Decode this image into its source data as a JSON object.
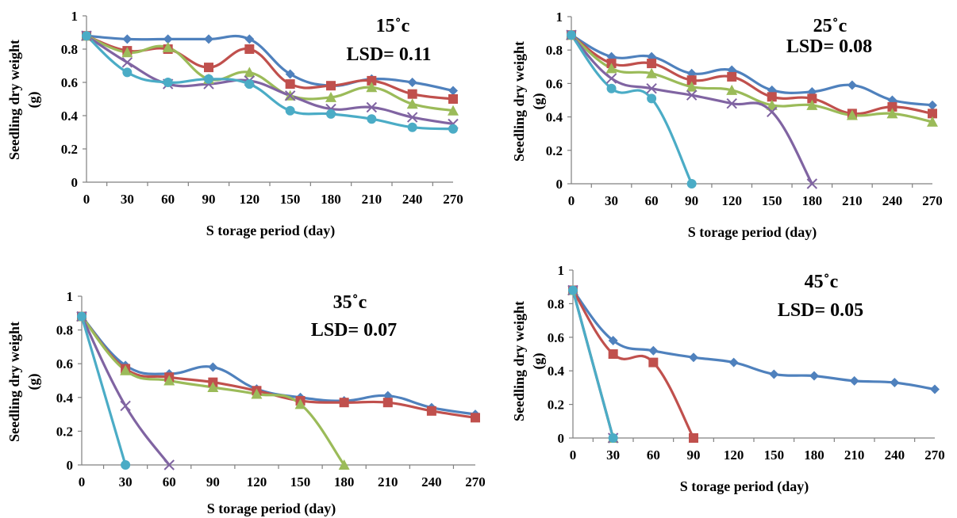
{
  "chart_data": [
    {
      "type": "line",
      "annotations": [
        "15˚c",
        "LSD= 0.11"
      ],
      "xlabel": "S torage period (day)",
      "ylabel": [
        "Seedling dry weight",
        "(g)"
      ],
      "x_ticks": [
        "0",
        "30",
        "60",
        "90",
        "120",
        "150",
        "180",
        "210",
        "240",
        "270"
      ],
      "y_ticks": [
        "0",
        "0.2",
        "0.4",
        "0.6",
        "0.8",
        "1"
      ],
      "xlim": [
        0,
        270
      ],
      "ylim": [
        0,
        1
      ],
      "series": [
        {
          "marker": "diamond",
          "color": "#4F81BD",
          "x": [
            0,
            30,
            60,
            90,
            120,
            150,
            180,
            210,
            240,
            270
          ],
          "y": [
            0.88,
            0.86,
            0.86,
            0.86,
            0.86,
            0.65,
            0.58,
            0.62,
            0.6,
            0.55
          ]
        },
        {
          "marker": "square",
          "color": "#C0504D",
          "x": [
            0,
            30,
            60,
            90,
            120,
            150,
            180,
            210,
            240,
            270
          ],
          "y": [
            0.88,
            0.79,
            0.8,
            0.69,
            0.8,
            0.59,
            0.58,
            0.61,
            0.53,
            0.5
          ]
        },
        {
          "marker": "triangle",
          "color": "#9BBB59",
          "x": [
            0,
            30,
            60,
            90,
            120,
            150,
            180,
            210,
            240,
            270
          ],
          "y": [
            0.88,
            0.78,
            0.81,
            0.62,
            0.66,
            0.52,
            0.51,
            0.57,
            0.47,
            0.43
          ]
        },
        {
          "marker": "x",
          "color": "#8064A2",
          "x": [
            0,
            30,
            60,
            90,
            120,
            150,
            180,
            210,
            240,
            270
          ],
          "y": [
            0.88,
            0.72,
            0.59,
            0.59,
            0.61,
            0.52,
            0.44,
            0.45,
            0.39,
            0.35
          ]
        },
        {
          "marker": "circle",
          "color": "#4BACC6",
          "x": [
            0,
            30,
            60,
            90,
            120,
            150,
            180,
            210,
            240,
            270
          ],
          "y": [
            0.88,
            0.66,
            0.6,
            0.62,
            0.59,
            0.43,
            0.41,
            0.38,
            0.33,
            0.32
          ]
        }
      ]
    },
    {
      "type": "line",
      "annotations": [
        "25˚c",
        "LSD= 0.08"
      ],
      "xlabel": "S torage period (day)",
      "ylabel": [
        "Seedling dry weight",
        "(g)"
      ],
      "x_ticks": [
        "0",
        "30",
        "60",
        "90",
        "120",
        "150",
        "180",
        "210",
        "240",
        "270"
      ],
      "y_ticks": [
        "0",
        "0.2",
        "0.4",
        "0.6",
        "0.8",
        "1"
      ],
      "xlim": [
        0,
        270
      ],
      "ylim": [
        0,
        1
      ],
      "series": [
        {
          "marker": "diamond",
          "color": "#4F81BD",
          "x": [
            0,
            30,
            60,
            90,
            120,
            150,
            180,
            210,
            240,
            270
          ],
          "y": [
            0.89,
            0.76,
            0.76,
            0.66,
            0.68,
            0.56,
            0.55,
            0.59,
            0.5,
            0.47
          ]
        },
        {
          "marker": "square",
          "color": "#C0504D",
          "x": [
            0,
            30,
            60,
            90,
            120,
            150,
            180,
            210,
            240,
            270
          ],
          "y": [
            0.89,
            0.72,
            0.72,
            0.62,
            0.64,
            0.52,
            0.51,
            0.42,
            0.46,
            0.42
          ]
        },
        {
          "marker": "triangle",
          "color": "#9BBB59",
          "x": [
            0,
            30,
            60,
            90,
            120,
            150,
            180,
            210,
            240,
            270
          ],
          "y": [
            0.89,
            0.69,
            0.66,
            0.58,
            0.56,
            0.47,
            0.47,
            0.41,
            0.42,
            0.37
          ]
        },
        {
          "marker": "x",
          "color": "#8064A2",
          "x": [
            0,
            30,
            60,
            90,
            120,
            150,
            180
          ],
          "y": [
            0.89,
            0.63,
            0.57,
            0.53,
            0.48,
            0.43,
            0.0
          ]
        },
        {
          "marker": "circle",
          "color": "#4BACC6",
          "x": [
            0,
            30,
            60,
            90
          ],
          "y": [
            0.89,
            0.57,
            0.51,
            0.0
          ]
        }
      ]
    },
    {
      "type": "line",
      "annotations": [
        "35˚c",
        "LSD= 0.07"
      ],
      "xlabel": "S torage period (day)",
      "ylabel": [
        "Seedling dry weight",
        "(g)"
      ],
      "x_ticks": [
        "0",
        "30",
        "60",
        "90",
        "120",
        "150",
        "180",
        "210",
        "240",
        "270"
      ],
      "y_ticks": [
        "0",
        "0.2",
        "0.4",
        "0.6",
        "0.8",
        "1"
      ],
      "xlim": [
        0,
        270
      ],
      "ylim": [
        0,
        1
      ],
      "series": [
        {
          "marker": "diamond",
          "color": "#4F81BD",
          "x": [
            0,
            30,
            60,
            90,
            120,
            150,
            180,
            210,
            240,
            270
          ],
          "y": [
            0.88,
            0.59,
            0.54,
            0.58,
            0.45,
            0.4,
            0.38,
            0.41,
            0.34,
            0.3
          ]
        },
        {
          "marker": "square",
          "color": "#C0504D",
          "x": [
            0,
            30,
            60,
            90,
            120,
            150,
            180,
            210,
            240,
            270
          ],
          "y": [
            0.88,
            0.57,
            0.52,
            0.49,
            0.44,
            0.38,
            0.37,
            0.37,
            0.32,
            0.28
          ]
        },
        {
          "marker": "triangle",
          "color": "#9BBB59",
          "x": [
            0,
            30,
            60,
            90,
            120,
            150,
            180
          ],
          "y": [
            0.88,
            0.56,
            0.5,
            0.46,
            0.42,
            0.36,
            0.0
          ]
        },
        {
          "marker": "x",
          "color": "#8064A2",
          "x": [
            0,
            30,
            60
          ],
          "y": [
            0.88,
            0.35,
            0.0
          ]
        },
        {
          "marker": "circle",
          "color": "#4BACC6",
          "x": [
            0,
            30
          ],
          "y": [
            0.88,
            0.0
          ]
        }
      ]
    },
    {
      "type": "line",
      "annotations": [
        "45˚c",
        "LSD= 0.05"
      ],
      "xlabel": "S torage period (day)",
      "ylabel": [
        "Seedling dry weight",
        "(g)"
      ],
      "x_ticks": [
        "0",
        "30",
        "60",
        "90",
        "120",
        "150",
        "180",
        "210",
        "240",
        "270"
      ],
      "y_ticks": [
        "0",
        "0.2",
        "0.4",
        "0.6",
        "0.8",
        "1"
      ],
      "xlim": [
        0,
        270
      ],
      "ylim": [
        0,
        1
      ],
      "series": [
        {
          "marker": "diamond",
          "color": "#4F81BD",
          "x": [
            0,
            30,
            60,
            90,
            120,
            150,
            180,
            210,
            240,
            270
          ],
          "y": [
            0.88,
            0.58,
            0.52,
            0.48,
            0.45,
            0.38,
            0.37,
            0.34,
            0.33,
            0.29
          ]
        },
        {
          "marker": "square",
          "color": "#C0504D",
          "x": [
            0,
            30,
            60,
            90
          ],
          "y": [
            0.88,
            0.5,
            0.45,
            0.0
          ]
        },
        {
          "marker": "triangle",
          "color": "#9BBB59",
          "x": [
            0,
            30
          ],
          "y": [
            0.88,
            0.0
          ]
        },
        {
          "marker": "x",
          "color": "#8064A2",
          "x": [
            0,
            30
          ],
          "y": [
            0.88,
            0.0
          ]
        },
        {
          "marker": "circle",
          "color": "#4BACC6",
          "x": [
            0,
            30
          ],
          "y": [
            0.88,
            0.0
          ]
        }
      ]
    }
  ]
}
